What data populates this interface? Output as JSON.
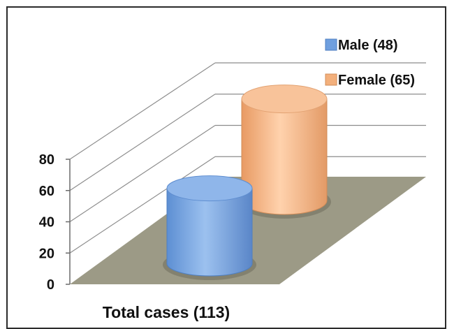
{
  "chart_data": {
    "type": "bar",
    "style": "3d-cylinder",
    "categories": [
      "Total cases (113)"
    ],
    "series": [
      {
        "name": "Male (48)",
        "values": [
          48
        ],
        "color": "#6f9fdf"
      },
      {
        "name": "Female (65)",
        "values": [
          65
        ],
        "color": "#f3b07c"
      }
    ],
    "yticks": [
      "0",
      "20",
      "40",
      "60",
      "80"
    ],
    "ylim": [
      0,
      80
    ],
    "grid": true,
    "legend": "top-right",
    "floor_color": "#9c9a86"
  }
}
